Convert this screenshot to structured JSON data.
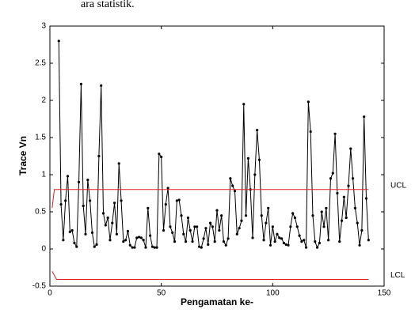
{
  "document_text": "ara statistik.",
  "chart_data": {
    "type": "line",
    "xlabel": "Pengamatan ke-",
    "ylabel": "Trace Vn",
    "xlim": [
      0,
      150
    ],
    "xticks": [
      0,
      50,
      100,
      150
    ],
    "ylim": [
      -0.5,
      3
    ],
    "yticks": [
      -0.5,
      0,
      0.5,
      1,
      1.5,
      2,
      2.5,
      3
    ],
    "series": [
      {
        "color": "#000000",
        "marker": true,
        "x": [
          4,
          5,
          6,
          7,
          8,
          9,
          10,
          11,
          12,
          13,
          14,
          15,
          16,
          17,
          18,
          19,
          20,
          21,
          22,
          23,
          24,
          25,
          26,
          27,
          28,
          29,
          30,
          31,
          32,
          33,
          34,
          35,
          36,
          37,
          38,
          39,
          40,
          41,
          42,
          43,
          44,
          45,
          46,
          47,
          48,
          49,
          50,
          51,
          52,
          53,
          54,
          55,
          56,
          57,
          58,
          59,
          60,
          61,
          62,
          63,
          64,
          65,
          66,
          67,
          68,
          69,
          70,
          71,
          72,
          73,
          74,
          75,
          76,
          77,
          78,
          79,
          80,
          81,
          82,
          83,
          84,
          85,
          86,
          87,
          88,
          89,
          90,
          91,
          92,
          93,
          94,
          95,
          96,
          97,
          98,
          99,
          100,
          101,
          102,
          103,
          104,
          105,
          106,
          107,
          108,
          109,
          110,
          111,
          112,
          113,
          114,
          115,
          116,
          117,
          118,
          119,
          120,
          121,
          122,
          123,
          124,
          125,
          126,
          127,
          128,
          129,
          130,
          131,
          132,
          133,
          134,
          135,
          136,
          137,
          138,
          139,
          140,
          141,
          142,
          143
        ],
        "values": [
          2.8,
          0.6,
          0.12,
          0.65,
          0.98,
          0.23,
          0.25,
          0.08,
          0.03,
          0.9,
          2.22,
          0.58,
          0.2,
          0.93,
          0.65,
          0.22,
          0.03,
          0.06,
          1.25,
          2.2,
          0.48,
          0.32,
          0.42,
          0.12,
          0.35,
          0.62,
          0.2,
          1.15,
          0.65,
          0.1,
          0.12,
          0.24,
          0.05,
          0.02,
          0.02,
          0.15,
          0.16,
          0.15,
          0.12,
          0.02,
          0.55,
          0.18,
          0.03,
          0.02,
          0.02,
          1.28,
          1.24,
          0.25,
          0.6,
          0.82,
          0.3,
          0.22,
          0.1,
          0.65,
          0.66,
          0.45,
          0.2,
          0.1,
          0.42,
          0.25,
          0.1,
          0.3,
          0.3,
          0.03,
          0.02,
          0.14,
          0.28,
          0.06,
          0.35,
          0.3,
          0.1,
          0.52,
          0.25,
          0.45,
          0.1,
          0.05,
          0.14,
          0.95,
          0.85,
          0.78,
          0.2,
          0.28,
          0.38,
          1.95,
          0.45,
          1.22,
          0.8,
          0.15,
          1.0,
          1.6,
          1.2,
          0.45,
          0.12,
          0.35,
          0.55,
          0.05,
          0.3,
          0.1,
          0.2,
          0.15,
          0.14,
          0.08,
          0.06,
          0.05,
          0.3,
          0.48,
          0.42,
          0.3,
          0.18,
          0.1,
          0.12,
          0.02,
          1.98,
          1.58,
          0.45,
          0.1,
          0.02,
          0.08,
          0.5,
          0.3,
          0.55,
          0.12,
          0.95,
          1.02,
          1.55,
          0.75,
          0.1,
          0.38,
          0.7,
          0.42,
          0.85,
          1.35,
          0.95,
          0.55,
          0.35,
          0.05,
          0.25,
          1.78,
          0.68,
          0.12
        ]
      },
      {
        "name": "UCL",
        "color": "#e02020",
        "marker": false,
        "x": [
          1,
          2,
          143
        ],
        "values": [
          0.55,
          0.8,
          0.8
        ]
      },
      {
        "name": "LCL",
        "color": "#e02020",
        "marker": false,
        "x": [
          1,
          3,
          143
        ],
        "values": [
          -0.3,
          -0.41,
          -0.41
        ]
      }
    ]
  }
}
